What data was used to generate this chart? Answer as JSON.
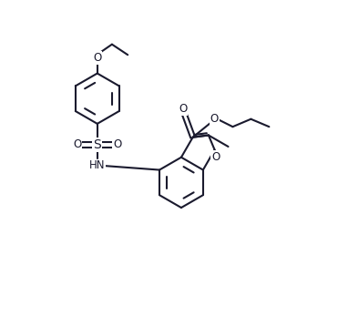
{
  "bg": "#ffffff",
  "lc": "#1a1a2e",
  "lw": 1.5,
  "figsize": [
    3.71,
    3.47
  ],
  "dpi": 100,
  "xlim": [
    -0.5,
    8.5
  ],
  "ylim": [
    0.5,
    9.5
  ]
}
